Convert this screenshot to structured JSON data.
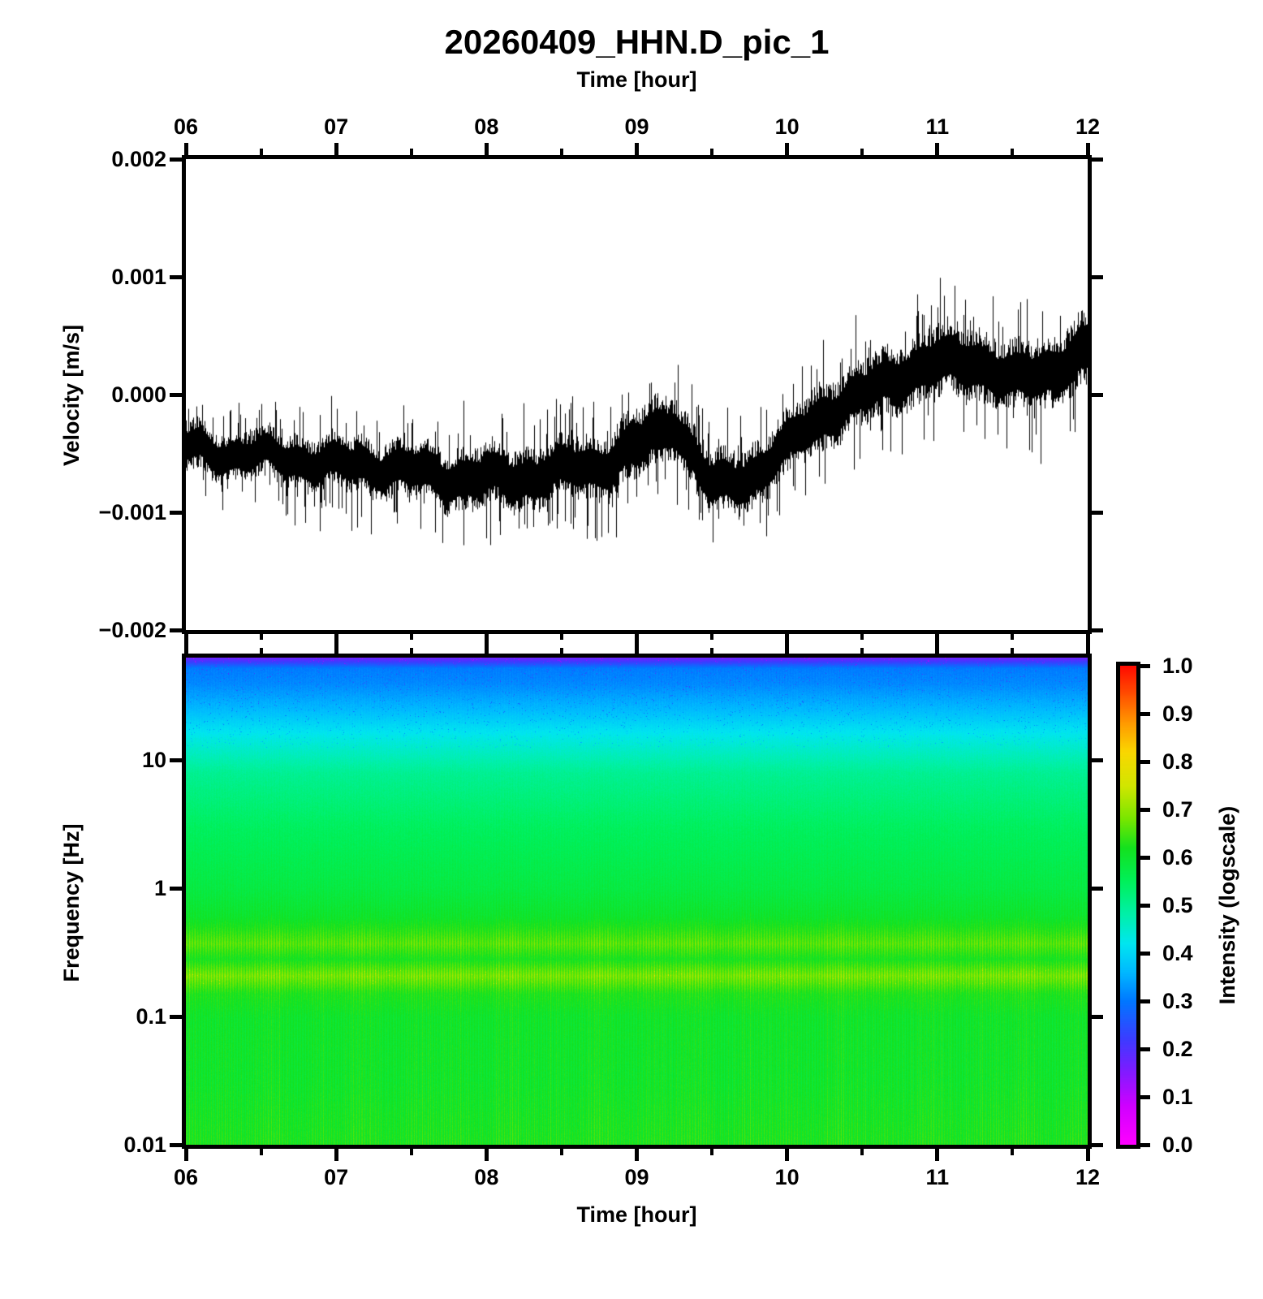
{
  "title": "20260409_HHN.D_pic_1",
  "top_axis": {
    "label": "Time [hour]",
    "ticks": [
      "06",
      "07",
      "08",
      "09",
      "10",
      "11",
      "12"
    ]
  },
  "bottom_axis": {
    "label": "Time [hour]",
    "ticks": [
      "06",
      "07",
      "08",
      "09",
      "10",
      "11",
      "12"
    ]
  },
  "waveform": {
    "ylabel": "Velocity [m/s]",
    "yticks": [
      "0.002",
      "0.001",
      "0.000",
      "−0.001",
      "−0.002"
    ]
  },
  "spectrogram": {
    "ylabel": "Frequency [Hz]",
    "yticks": [
      "10",
      "1",
      "0.1",
      "0.01"
    ]
  },
  "colorbar": {
    "label": "Intensity (logscale)",
    "ticks": [
      "1.0",
      "0.9",
      "0.8",
      "0.7",
      "0.6",
      "0.5",
      "0.4",
      "0.3",
      "0.2",
      "0.1",
      "0.0"
    ]
  },
  "colors": {
    "trace": "#000000",
    "axis": "#000000",
    "background": "#ffffff"
  },
  "chart_data": [
    {
      "type": "line",
      "name": "seismogram-waveform",
      "title": "20260409_HHN.D_pic_1",
      "xlabel": "Time [hour]",
      "ylabel": "Velocity [m/s]",
      "xlim": [
        6,
        12
      ],
      "ylim": [
        -0.002,
        0.002
      ],
      "xticks": [
        6,
        7,
        8,
        9,
        10,
        11,
        12
      ],
      "yticks": [
        0.002,
        0.001,
        0.0,
        -0.001,
        -0.002
      ],
      "line_color": "#000000",
      "x_hours": [
        6,
        6.25,
        6.5,
        6.75,
        7,
        7.25,
        7.5,
        7.75,
        8,
        8.25,
        8.5,
        8.75,
        9,
        9.25,
        9.5,
        9.75,
        10,
        10.25,
        10.5,
        10.75,
        11,
        11.25,
        11.5,
        11.75,
        12
      ],
      "envelope_center_mps": [
        -0.00045,
        -0.0005,
        -0.00052,
        -0.00055,
        -0.0006,
        -0.0006,
        -0.00065,
        -0.0007,
        -0.00072,
        -0.0007,
        -0.00065,
        -0.0006,
        -0.00045,
        -0.00022,
        -0.0008,
        -0.0007,
        -0.00045,
        -0.00015,
        -2e-05,
        0.00018,
        0.00025,
        0.0003,
        0.0001,
        0.00022,
        0.00035
      ],
      "envelope_halfwidth_mps": [
        0.0002,
        0.0002,
        0.0002,
        0.00022,
        0.00022,
        0.00023,
        0.00024,
        0.00025,
        0.00026,
        0.00025,
        0.00025,
        0.00026,
        0.00028,
        0.00026,
        0.00027,
        0.00026,
        0.00026,
        0.00028,
        0.00026,
        0.00028,
        0.0003,
        0.0003,
        0.00028,
        0.0003,
        0.00032
      ],
      "peak_spike_extent_mps": 0.001,
      "trough_spike_extent_mps": -0.0015
    },
    {
      "type": "heatmap",
      "name": "spectrogram",
      "xlabel": "Time [hour]",
      "ylabel": "Frequency [Hz]",
      "xlim": [
        6,
        12
      ],
      "freq_lim_hz": [
        0.01,
        63
      ],
      "freq_scale": "log",
      "freq_ticks_hz": [
        10,
        1,
        0.1,
        0.01
      ],
      "colorbar_label": "Intensity (logscale)",
      "intensity_range": [
        0,
        1
      ],
      "microseism_bands_hz": [
        0.37,
        0.21
      ],
      "intensity_vs_freq": {
        "log10_freq": [
          1.8,
          1.6,
          1.4,
          1.18,
          0.9,
          0.48,
          0.0,
          -0.22,
          -0.43,
          -0.55,
          -0.68,
          -0.82,
          -1.0,
          -1.5,
          -2.0
        ],
        "intensity": [
          0.295,
          0.315,
          0.36,
          0.43,
          0.5,
          0.545,
          0.575,
          0.6,
          0.655,
          0.615,
          0.675,
          0.62,
          0.6,
          0.6,
          0.615
        ]
      },
      "stripe_strength_vs_freq": {
        "log10_freq": [
          1.8,
          0.9,
          0.3,
          0.0,
          -0.3,
          -0.43,
          -0.55,
          -0.68,
          -0.82,
          -1.0,
          -1.5,
          -2.0
        ],
        "strength": [
          0.01,
          0.012,
          0.018,
          0.025,
          0.04,
          0.075,
          0.045,
          0.085,
          0.05,
          0.055,
          0.065,
          0.07
        ]
      },
      "colormap_stops": [
        {
          "v": 0.0,
          "rgb": [
            255,
            0,
            255
          ]
        },
        {
          "v": 0.08,
          "rgb": [
            208,
            0,
            255
          ]
        },
        {
          "v": 0.16,
          "rgb": [
            120,
            30,
            255
          ]
        },
        {
          "v": 0.22,
          "rgb": [
            60,
            60,
            255
          ]
        },
        {
          "v": 0.3,
          "rgb": [
            0,
            120,
            255
          ]
        },
        {
          "v": 0.36,
          "rgb": [
            0,
            185,
            255
          ]
        },
        {
          "v": 0.42,
          "rgb": [
            0,
            230,
            240
          ]
        },
        {
          "v": 0.48,
          "rgb": [
            0,
            240,
            170
          ]
        },
        {
          "v": 0.55,
          "rgb": [
            0,
            240,
            90
          ]
        },
        {
          "v": 0.62,
          "rgb": [
            20,
            225,
            30
          ]
        },
        {
          "v": 0.68,
          "rgb": [
            120,
            230,
            0
          ]
        },
        {
          "v": 0.75,
          "rgb": [
            210,
            230,
            0
          ]
        },
        {
          "v": 0.82,
          "rgb": [
            250,
            215,
            0
          ]
        },
        {
          "v": 0.88,
          "rgb": [
            255,
            155,
            0
          ]
        },
        {
          "v": 0.94,
          "rgb": [
            255,
            80,
            0
          ]
        },
        {
          "v": 1.0,
          "rgb": [
            255,
            10,
            0
          ]
        }
      ]
    }
  ]
}
